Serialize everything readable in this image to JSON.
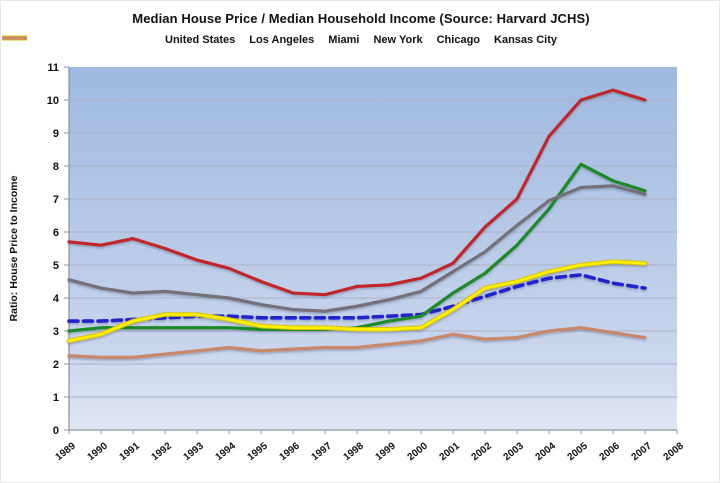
{
  "title": "Median House Price / Median Household Income (Source: Harvard JCHS)",
  "y_axis_title": "Ratio: House Price to Income",
  "plot_colors": {
    "bg_top": "#9fb9e0",
    "bg_bottom": "#dfe6f4",
    "gridline": "#aab3c6"
  },
  "chart_data": {
    "type": "line",
    "title": "Median House Price / Median Household Income (Source: Harvard JCHS)",
    "xlabel": "",
    "ylabel": "Ratio: House Price to Income",
    "x_labels": [
      "1989",
      "1990",
      "1991",
      "1992",
      "1993",
      "1994",
      "1995",
      "1996",
      "1997",
      "1998",
      "1999",
      "2000",
      "2001",
      "2002",
      "2003",
      "2004",
      "2005",
      "2006",
      "2007",
      "2008"
    ],
    "years_with_data": [
      "1989",
      "1990",
      "1991",
      "1992",
      "1993",
      "1994",
      "1995",
      "1996",
      "1997",
      "1998",
      "1999",
      "2000",
      "2001",
      "2002",
      "2003",
      "2004",
      "2005",
      "2006",
      "2007"
    ],
    "ylim": [
      0,
      11
    ],
    "y_ticks": [
      0,
      1,
      2,
      3,
      4,
      5,
      6,
      7,
      8,
      9,
      10,
      11
    ],
    "grid": true,
    "legend_position": "top",
    "series": [
      {
        "name": "United States",
        "color": "#2323cf",
        "dashed": true,
        "values": [
          3.3,
          3.3,
          3.35,
          3.4,
          3.45,
          3.45,
          3.4,
          3.4,
          3.4,
          3.4,
          3.45,
          3.5,
          3.75,
          4.05,
          4.35,
          4.6,
          4.7,
          4.45,
          4.3
        ]
      },
      {
        "name": "Los Angeles",
        "color": "#c2272c",
        "dashed": false,
        "values": [
          5.7,
          5.6,
          5.8,
          5.5,
          5.15,
          4.9,
          4.5,
          4.15,
          4.1,
          4.35,
          4.4,
          4.6,
          5.05,
          6.15,
          7.0,
          8.9,
          10.0,
          10.3,
          10.0
        ]
      },
      {
        "name": "Miami",
        "color": "#1e8a28",
        "dashed": false,
        "values": [
          3.0,
          3.1,
          3.1,
          3.1,
          3.1,
          3.1,
          3.05,
          3.05,
          3.05,
          3.1,
          3.3,
          3.45,
          4.15,
          4.75,
          5.6,
          6.7,
          8.05,
          7.55,
          7.25
        ]
      },
      {
        "name": "New York",
        "color": "#75707a",
        "dashed": false,
        "values": [
          4.55,
          4.3,
          4.15,
          4.2,
          4.1,
          4.0,
          3.8,
          3.65,
          3.6,
          3.75,
          3.95,
          4.2,
          4.8,
          5.4,
          6.2,
          6.95,
          7.35,
          7.4,
          7.15
        ]
      },
      {
        "name": "Chicago",
        "color": "#ffef00",
        "dashed": false,
        "underlay": "#d8c400",
        "values": [
          2.7,
          2.9,
          3.3,
          3.5,
          3.5,
          3.35,
          3.15,
          3.1,
          3.1,
          3.05,
          3.05,
          3.1,
          3.65,
          4.3,
          4.5,
          4.8,
          5.0,
          5.1,
          5.05
        ]
      },
      {
        "name": "Kansas City",
        "color": "#c9886a",
        "dashed": false,
        "values": [
          2.25,
          2.2,
          2.2,
          2.3,
          2.4,
          2.5,
          2.4,
          2.45,
          2.5,
          2.5,
          2.6,
          2.7,
          2.9,
          2.75,
          2.8,
          3.0,
          3.1,
          2.95,
          2.8
        ]
      }
    ]
  }
}
